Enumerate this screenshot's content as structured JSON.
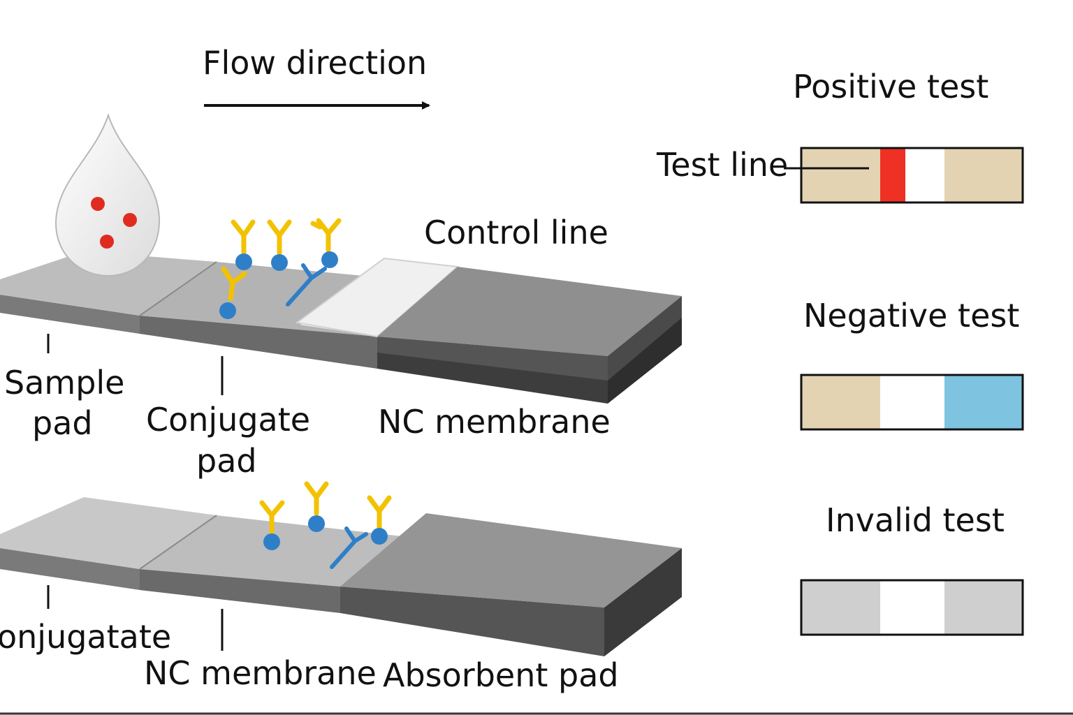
{
  "header": {
    "flow_direction": "Flow direction"
  },
  "strip_top": {
    "control_line": "Control line",
    "sample_pad_1": "Sample",
    "sample_pad_2": "pad",
    "conjugate_pad_1": "Conjugate",
    "conjugate_pad_2": "pad",
    "nc_membrane": "NC membrane"
  },
  "strip_bottom": {
    "conjugate": "onjugatate",
    "nc_membrane": "NC membrane",
    "absorbent_pad": "Absorbent pad"
  },
  "results": {
    "positive": {
      "title": "Positive test",
      "test_line_label": "Test line"
    },
    "negative": {
      "title": "Negative test"
    },
    "invalid": {
      "title": "Invalid test"
    }
  },
  "colors": {
    "antibody_gold": "#f2c200",
    "antibody_blue": "#2f7fc8",
    "antigen_red": "#e02b20",
    "positive_line": "#ee3124",
    "pad_beige": "#e3d3b3",
    "negative_blue": "#7ec3e0",
    "invalid_gray": "#cfcfcf"
  }
}
